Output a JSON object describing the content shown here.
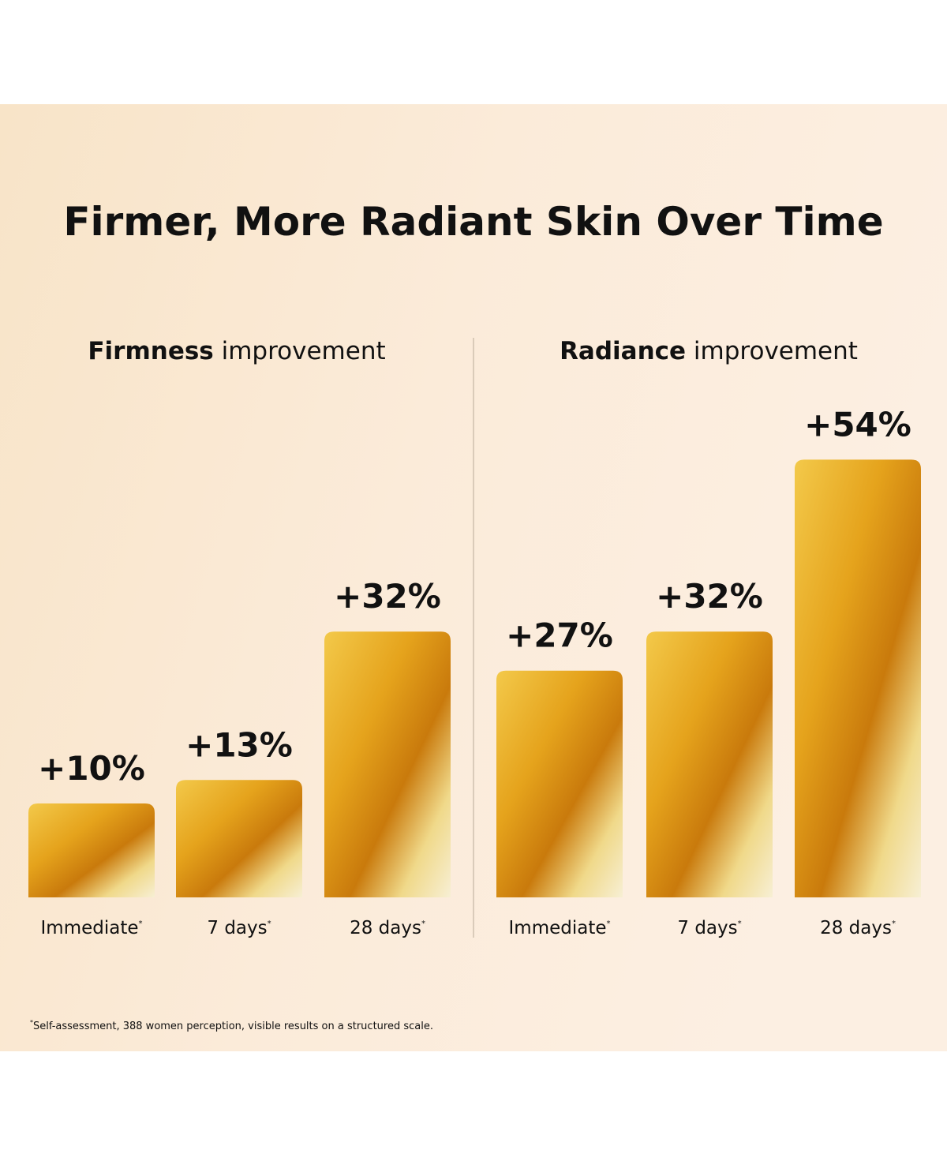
{
  "title": "Firmer, More Radiant Skin Over Time",
  "footnote_marker": "*",
  "footnote": "Self-assessment, 388 women perception, visible results on a structured scale.",
  "chart_data": [
    {
      "type": "bar",
      "title": [
        "Firmness",
        "improvement"
      ],
      "categories": [
        "Immediate",
        "7 days",
        "28 days"
      ],
      "category_marker": "*",
      "values": [
        10,
        13,
        32
      ],
      "value_labels": [
        "+10%",
        "+13%",
        "+32%"
      ],
      "color": "#e5a31c"
    },
    {
      "type": "bar",
      "title": [
        "Radiance",
        "improvement"
      ],
      "categories": [
        "Immediate",
        "7 days",
        "28 days"
      ],
      "category_marker": "*",
      "values": [
        27,
        32,
        54
      ],
      "value_labels": [
        "+27%",
        "+32%",
        "+54%"
      ],
      "color": "#e5a31c"
    }
  ]
}
